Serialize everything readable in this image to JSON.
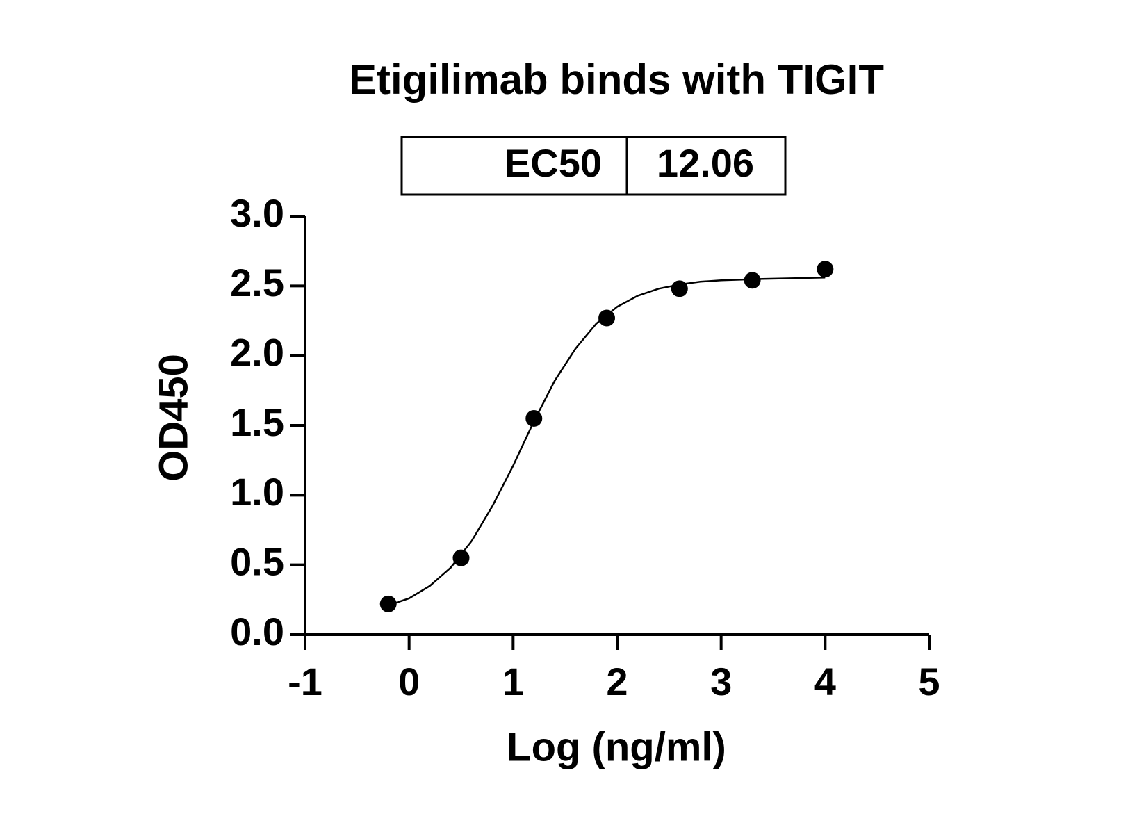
{
  "chart_data": {
    "type": "scatter",
    "title": "Etigilimab binds with TIGIT",
    "summary_table": {
      "label": "EC50",
      "value": 12.06
    },
    "x_label": "Log (ng/ml)",
    "y_label": "OD450",
    "xlim": [
      -1,
      5
    ],
    "xticks": [
      -1,
      0,
      1,
      2,
      3,
      4,
      5
    ],
    "ylim": [
      0,
      3
    ],
    "yticks": [
      {
        "value": 0,
        "label": "0.0"
      },
      0.5,
      {
        "value": 1,
        "label": "1.0"
      },
      1.5,
      {
        "value": 2,
        "label": "2.0"
      },
      2.5,
      {
        "value": 3,
        "label": "3.0"
      }
    ],
    "grid": false,
    "series": [
      {
        "mode": "markers",
        "color": "#000000",
        "x": [
          -0.2,
          0.5,
          1.2,
          1.9,
          2.6,
          3.3,
          4.0
        ],
        "values": [
          0.22,
          0.55,
          1.55,
          2.27,
          2.48,
          2.54,
          2.62
        ]
      },
      {
        "mode": "line",
        "color": "#000000",
        "x": [
          -0.2,
          0.0,
          0.2,
          0.4,
          0.6,
          0.8,
          1.0,
          1.2,
          1.4,
          1.6,
          1.8,
          2.0,
          2.2,
          2.4,
          2.6,
          2.8,
          3.0,
          3.4,
          4.0
        ],
        "values": [
          0.21,
          0.26,
          0.35,
          0.48,
          0.67,
          0.92,
          1.21,
          1.53,
          1.82,
          2.05,
          2.23,
          2.35,
          2.43,
          2.48,
          2.51,
          2.53,
          2.54,
          2.55,
          2.56
        ]
      }
    ]
  }
}
